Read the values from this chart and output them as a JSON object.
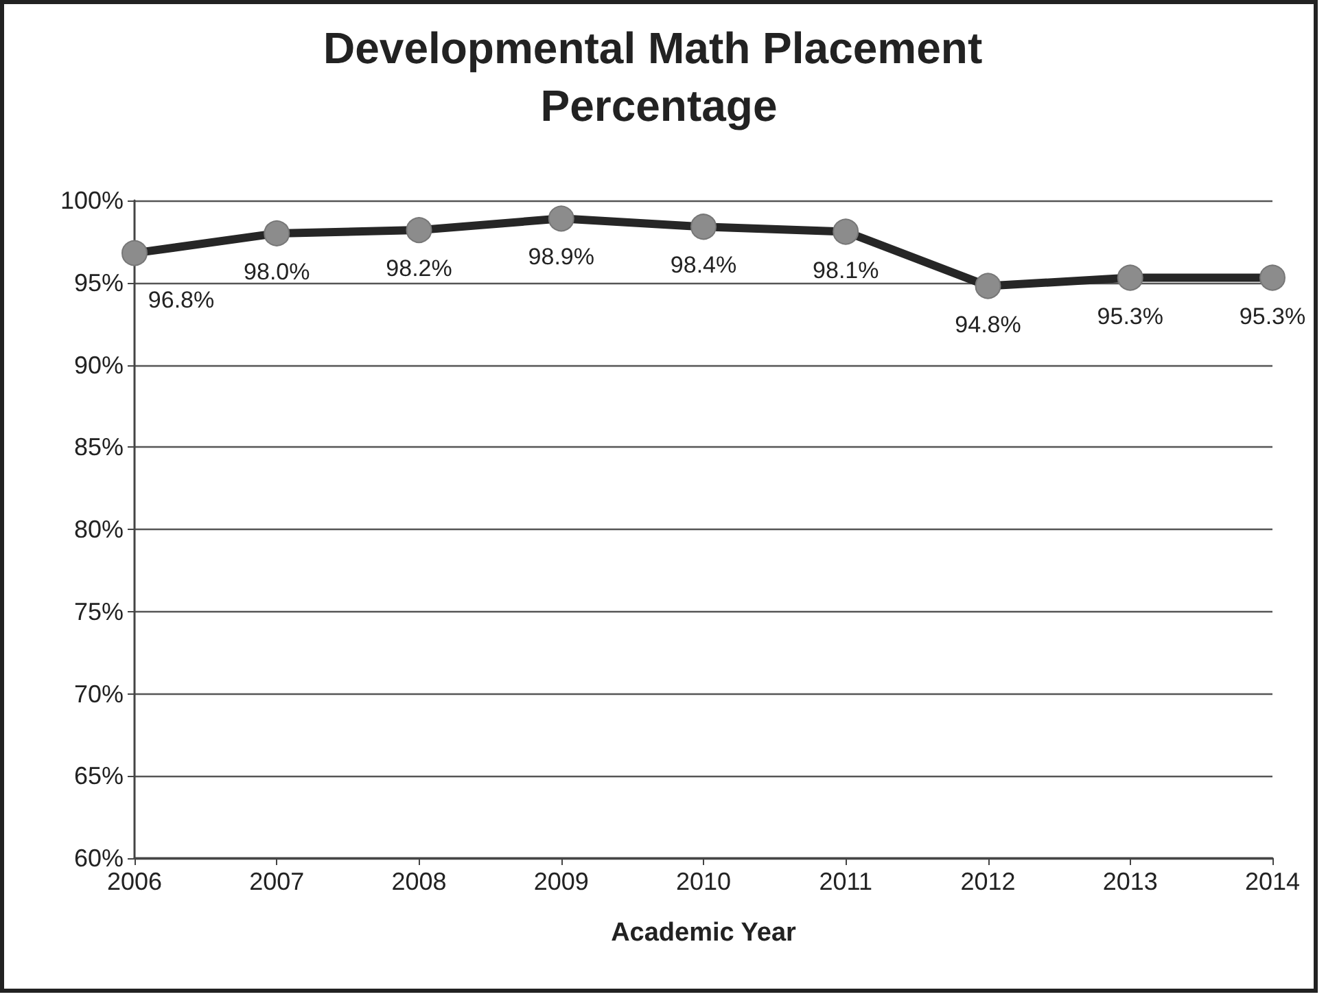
{
  "chart_data": {
    "type": "line",
    "title": "Developmental Math Placement Percentage",
    "xlabel": "Academic Year",
    "categories": [
      "2006",
      "2007",
      "2008",
      "2009",
      "2010",
      "2011",
      "2012",
      "2013",
      "2014"
    ],
    "series": [
      {
        "color": "#262626",
        "values": [
          96.8,
          98.0,
          98.2,
          98.9,
          98.4,
          98.1,
          94.8,
          95.3,
          95.3
        ],
        "value_labels": [
          "96.8%",
          "98.0%",
          "98.2%",
          "98.9%",
          "98.4%",
          "98.1%",
          "94.8%",
          "95.3%",
          "95.3%"
        ]
      }
    ],
    "ylim": [
      60,
      100
    ],
    "yticks": [
      {
        "value": 60,
        "label": "60%"
      },
      {
        "value": 65,
        "label": "65%"
      },
      {
        "value": 70,
        "label": "70%"
      },
      {
        "value": 75,
        "label": "75%"
      },
      {
        "value": 80,
        "label": "80%"
      },
      {
        "value": 85,
        "label": "85%"
      },
      {
        "value": 90,
        "label": "90%"
      },
      {
        "value": 95,
        "label": "95%"
      },
      {
        "value": 100,
        "label": "100%"
      }
    ],
    "grid": "y",
    "marker": "circle",
    "line_style": "solid"
  }
}
